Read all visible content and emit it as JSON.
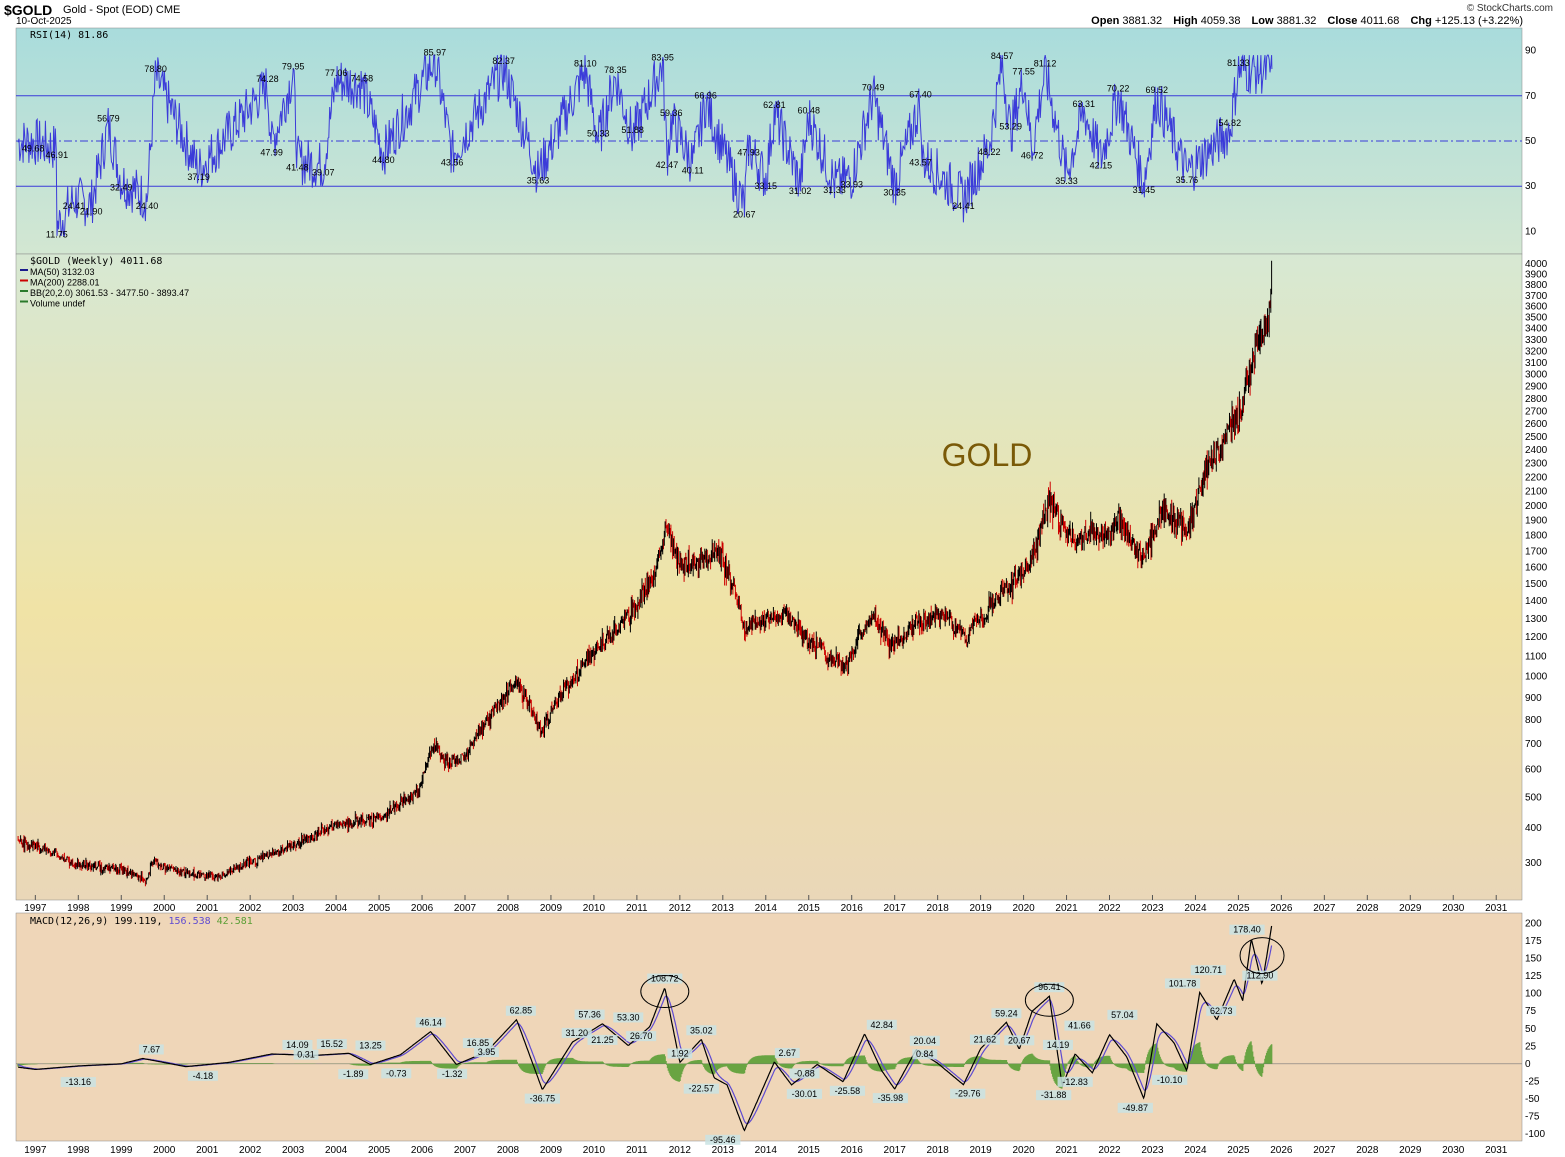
{
  "header": {
    "symbol": "$GOLD",
    "description": "Gold - Spot (EOD)",
    "exchange": "CME",
    "date": "10-Oct-2025",
    "brand": "© StockCharts.com",
    "open_label": "Open",
    "open": "3881.32",
    "high_label": "High",
    "high": "4059.38",
    "low_label": "Low",
    "low": "3881.32",
    "close_label": "Close",
    "close": "4011.68",
    "chg_label": "Chg",
    "chg": "+125.13 (+3.22%)"
  },
  "colors": {
    "rsi_line": "#3b3bd9",
    "rsi_bg_top": "#a9dcdc",
    "rsi_bg_bottom": "#d3e7d2",
    "price_bg_top": "#d7e8d3",
    "price_bg_mid": "#f0e3a6",
    "price_bg_bottom": "#ead7b8",
    "macd_bg": "#efd6b8",
    "up_bar": "#000000",
    "down_bar": "#cc0000",
    "macd_line": "#000000",
    "signal_line": "#5f4bd1",
    "histogram": "#5a9e35",
    "watermark": "#7a5a08"
  },
  "chart_data": [
    {
      "type": "line",
      "panel": "RSI",
      "legend": "RSI(14) 81.86",
      "ylim": [
        0,
        100
      ],
      "y_ticks": [
        10,
        30,
        50,
        70,
        90
      ],
      "reference_lines": [
        30,
        50,
        70
      ],
      "labels": [
        {
          "x": 1996.95,
          "y": 49.68
        },
        {
          "x": 1997.5,
          "y": 46.91
        },
        {
          "x": 1997.5,
          "y": 11.75
        },
        {
          "x": 1997.9,
          "y": 24.41
        },
        {
          "x": 1998.3,
          "y": 21.9
        },
        {
          "x": 1998.7,
          "y": 56.79
        },
        {
          "x": 1999.0,
          "y": 32.49
        },
        {
          "x": 1999.6,
          "y": 24.4
        },
        {
          "x": 1999.8,
          "y": 78.8
        },
        {
          "x": 2000.8,
          "y": 37.19
        },
        {
          "x": 2002.5,
          "y": 47.99
        },
        {
          "x": 2002.4,
          "y": 74.28
        },
        {
          "x": 2003.0,
          "y": 79.95
        },
        {
          "x": 2003.1,
          "y": 41.48
        },
        {
          "x": 2003.7,
          "y": 39.07
        },
        {
          "x": 2004.0,
          "y": 77.06
        },
        {
          "x": 2004.6,
          "y": 74.58
        },
        {
          "x": 2005.1,
          "y": 44.8
        },
        {
          "x": 2006.3,
          "y": 85.97
        },
        {
          "x": 2006.7,
          "y": 43.56
        },
        {
          "x": 2007.9,
          "y": 82.37
        },
        {
          "x": 2008.7,
          "y": 35.63
        },
        {
          "x": 2009.8,
          "y": 81.1
        },
        {
          "x": 2010.1,
          "y": 50.33
        },
        {
          "x": 2010.5,
          "y": 78.35
        },
        {
          "x": 2010.9,
          "y": 51.88
        },
        {
          "x": 2011.6,
          "y": 83.95
        },
        {
          "x": 2011.8,
          "y": 59.36
        },
        {
          "x": 2011.7,
          "y": 42.47
        },
        {
          "x": 2012.3,
          "y": 40.11
        },
        {
          "x": 2012.6,
          "y": 66.96
        },
        {
          "x": 2013.6,
          "y": 47.93
        },
        {
          "x": 2013.5,
          "y": 20.67
        },
        {
          "x": 2014.0,
          "y": 33.15
        },
        {
          "x": 2014.2,
          "y": 62.81
        },
        {
          "x": 2014.8,
          "y": 31.02
        },
        {
          "x": 2015.0,
          "y": 60.48
        },
        {
          "x": 2015.6,
          "y": 31.33
        },
        {
          "x": 2016.0,
          "y": 33.93
        },
        {
          "x": 2016.5,
          "y": 70.49
        },
        {
          "x": 2017.0,
          "y": 30.35
        },
        {
          "x": 2017.6,
          "y": 67.4
        },
        {
          "x": 2017.6,
          "y": 43.57
        },
        {
          "x": 2018.6,
          "y": 24.41
        },
        {
          "x": 2019.2,
          "y": 48.22
        },
        {
          "x": 2019.5,
          "y": 84.57
        },
        {
          "x": 2019.7,
          "y": 53.29
        },
        {
          "x": 2020.0,
          "y": 77.55
        },
        {
          "x": 2020.5,
          "y": 81.12
        },
        {
          "x": 2020.2,
          "y": 46.72
        },
        {
          "x": 2021.0,
          "y": 35.33
        },
        {
          "x": 2021.4,
          "y": 63.31
        },
        {
          "x": 2021.8,
          "y": 42.15
        },
        {
          "x": 2022.2,
          "y": 70.22
        },
        {
          "x": 2022.8,
          "y": 31.45
        },
        {
          "x": 2023.1,
          "y": 69.52
        },
        {
          "x": 2023.8,
          "y": 35.76
        },
        {
          "x": 2024.8,
          "y": 54.82
        },
        {
          "x": 2025.0,
          "y": 81.33
        }
      ]
    },
    {
      "type": "line",
      "panel": "Price",
      "title": "$GOLD (Weekly) 4011.68",
      "legend": [
        {
          "name": "MA(50)",
          "value": "3132.03",
          "color": "#1a1a8c"
        },
        {
          "name": "MA(200)",
          "value": "2288.01",
          "color": "#cc0000"
        },
        {
          "name": "BB(20,2.0)",
          "value": "3061.53 - 3477.50 - 3893.47",
          "color": "#2a7a2a"
        },
        {
          "name": "Volume undef",
          "value": "",
          "color": "#2a7a2a"
        }
      ],
      "watermark": "GOLD",
      "ylim": [
        210,
        4100
      ],
      "y_ticks": [
        300,
        400,
        500,
        600,
        700,
        800,
        900,
        1000,
        1100,
        1200,
        1300,
        1400,
        1500,
        1600,
        1700,
        1800,
        1900,
        2000,
        2100,
        2200,
        2300,
        2400,
        2500,
        2600,
        2700,
        2800,
        2900,
        3000,
        3100,
        3200,
        3300,
        3400,
        3500,
        3600,
        3700,
        3800,
        3900,
        4000
      ],
      "x_ticks": [
        "1997",
        "1998",
        "1999",
        "2000",
        "2001",
        "2002",
        "2003",
        "2004",
        "2005",
        "2006",
        "2007",
        "2008",
        "2009",
        "2010",
        "2011",
        "2012",
        "2013",
        "2014",
        "2015",
        "2016",
        "2017",
        "2018",
        "2019",
        "2020",
        "2021",
        "2022",
        "2023",
        "2024",
        "2025",
        "2026",
        "2027",
        "2028",
        "2029",
        "2030",
        "2031"
      ],
      "series": [
        {
          "x": [
            1996.0,
            1997.0,
            1998.0,
            1999.0,
            1999.6,
            1999.75,
            1999.9,
            2000.5,
            2001.2,
            2002.0,
            2003.0,
            2004.0,
            2005.0,
            2005.9,
            2006.3,
            2006.5,
            2007.0,
            2007.7,
            2008.2,
            2008.8,
            2009.2,
            2009.9,
            2010.5,
            2011.0,
            2011.4,
            2011.7,
            2011.9,
            2012.5,
            2012.9,
            2013.3,
            2013.5,
            2014.0,
            2014.5,
            2015.0,
            2015.5,
            2015.9,
            2016.5,
            2016.9,
            2017.7,
            2018.2,
            2018.65,
            2019.0,
            2019.5,
            2019.9,
            2020.2,
            2020.6,
            2020.9,
            2021.2,
            2021.6,
            2022.0,
            2022.2,
            2022.5,
            2022.8,
            2023.2,
            2023.5,
            2023.8,
            2024.0,
            2024.3,
            2024.6,
            2024.9,
            2025.0,
            2025.3,
            2025.5,
            2025.7,
            2025.78
          ],
          "y": [
            370,
            350,
            295,
            285,
            255,
            310,
            290,
            275,
            265,
            300,
            350,
            410,
            430,
            520,
            700,
            630,
            650,
            850,
            980,
            750,
            920,
            1100,
            1230,
            1380,
            1550,
            1880,
            1650,
            1620,
            1710,
            1450,
            1250,
            1300,
            1320,
            1180,
            1100,
            1060,
            1340,
            1150,
            1300,
            1320,
            1190,
            1300,
            1450,
            1550,
            1650,
            2050,
            1850,
            1760,
            1820,
            1790,
            1940,
            1750,
            1650,
            1950,
            1930,
            1830,
            2030,
            2300,
            2450,
            2650,
            2630,
            3100,
            3350,
            3450,
            4011
          ]
        }
      ]
    },
    {
      "type": "line",
      "panel": "MACD",
      "legend": {
        "name": "MACD(12,26,9)",
        "macd": "199.119",
        "signal": "156.538",
        "histogram": "42.581"
      },
      "ylim": [
        -110,
        215
      ],
      "y_ticks": [
        -100,
        -75,
        -50,
        -25,
        0,
        25,
        50,
        75,
        100,
        125,
        150,
        175,
        200
      ],
      "x_ticks": [
        "1997",
        "1998",
        "1999",
        "2000",
        "2001",
        "2002",
        "2003",
        "2004",
        "2005",
        "2006",
        "2007",
        "2008",
        "2009",
        "2010",
        "2011",
        "2012",
        "2013",
        "2014",
        "2015",
        "2016",
        "2017",
        "2018",
        "2019",
        "2020",
        "2021",
        "2022",
        "2023",
        "2024",
        "2025",
        "2026",
        "2027",
        "2028",
        "2029",
        "2030",
        "2031"
      ],
      "macd": {
        "x": [
          1996.0,
          1997.0,
          1998.0,
          1999.0,
          1999.5,
          2000.5,
          2001.5,
          2002.5,
          2003.5,
          2004.3,
          2004.8,
          2005.5,
          2006.2,
          2006.8,
          2007.5,
          2008.2,
          2008.8,
          2009.5,
          2010.2,
          2010.8,
          2011.3,
          2011.65,
          2012.0,
          2012.5,
          2012.8,
          2013.1,
          2013.5,
          2014.2,
          2014.6,
          2015.2,
          2015.8,
          2016.3,
          2016.7,
          2017.0,
          2017.5,
          2018.0,
          2018.6,
          2019.0,
          2019.6,
          2019.9,
          2020.2,
          2020.6,
          2020.9,
          2021.2,
          2021.6,
          2022.0,
          2022.4,
          2022.8,
          2023.1,
          2023.5,
          2023.8,
          2024.1,
          2024.5,
          2024.9,
          2025.1,
          2025.3,
          2025.55,
          2025.65,
          2025.78
        ],
        "y": [
          0,
          -8,
          -3,
          0,
          7.67,
          -4,
          2,
          14,
          12,
          15,
          -1,
          13,
          46,
          -1,
          17,
          63,
          -37,
          31,
          57,
          26,
          53,
          108.72,
          2,
          35,
          -20,
          -30,
          -95.46,
          2.67,
          -30,
          -0.88,
          -25.58,
          42.84,
          -10,
          -35.98,
          20.04,
          0.84,
          -29.76,
          21.62,
          59.24,
          20.67,
          75,
          96.41,
          -31.88,
          14.19,
          -12.83,
          41.66,
          10,
          -49.87,
          57.04,
          30,
          -10.1,
          101.78,
          62.73,
          120.71,
          90,
          178.4,
          112.9,
          150,
          199.119
        ]
      },
      "labels": [
        {
          "x": 1999.7,
          "y": 7.67
        },
        {
          "x": 1998.0,
          "y": -13.16
        },
        {
          "x": 2000.9,
          "y": -4.18
        },
        {
          "x": 2003.1,
          "y": 14.09
        },
        {
          "x": 2003.3,
          "y": 0.31
        },
        {
          "x": 2003.9,
          "y": 15.52
        },
        {
          "x": 2004.4,
          "y": -1.89
        },
        {
          "x": 2004.8,
          "y": 13.25
        },
        {
          "x": 2005.4,
          "y": -0.73
        },
        {
          "x": 2006.2,
          "y": 46.14
        },
        {
          "x": 2006.7,
          "y": -1.32
        },
        {
          "x": 2007.3,
          "y": 16.85
        },
        {
          "x": 2007.5,
          "y": 3.95
        },
        {
          "x": 2008.3,
          "y": 62.85
        },
        {
          "x": 2008.8,
          "y": -36.75
        },
        {
          "x": 2009.6,
          "y": 31.2
        },
        {
          "x": 2009.9,
          "y": 57.36
        },
        {
          "x": 2010.2,
          "y": 21.25
        },
        {
          "x": 2010.8,
          "y": 53.3
        },
        {
          "x": 2011.1,
          "y": 26.7
        },
        {
          "x": 2011.65,
          "y": 108.72
        },
        {
          "x": 2012.0,
          "y": 1.92
        },
        {
          "x": 2012.5,
          "y": 35.02
        },
        {
          "x": 2012.5,
          "y": -22.57
        },
        {
          "x": 2013.0,
          "y": -95.46
        },
        {
          "x": 2014.5,
          "y": 2.67
        },
        {
          "x": 2014.9,
          "y": -0.88
        },
        {
          "x": 2014.9,
          "y": -30.01
        },
        {
          "x": 2015.9,
          "y": -25.58
        },
        {
          "x": 2016.7,
          "y": 42.84
        },
        {
          "x": 2016.9,
          "y": -35.98
        },
        {
          "x": 2017.7,
          "y": 20.04
        },
        {
          "x": 2017.7,
          "y": 0.84
        },
        {
          "x": 2018.7,
          "y": -29.76
        },
        {
          "x": 2019.1,
          "y": 21.62
        },
        {
          "x": 2019.6,
          "y": 59.24
        },
        {
          "x": 2019.9,
          "y": 20.67
        },
        {
          "x": 2020.6,
          "y": 96.41
        },
        {
          "x": 2020.8,
          "y": 14.19
        },
        {
          "x": 2020.7,
          "y": -31.88
        },
        {
          "x": 2021.2,
          "y": -12.83
        },
        {
          "x": 2021.3,
          "y": 41.66
        },
        {
          "x": 2022.3,
          "y": 57.04
        },
        {
          "x": 2022.6,
          "y": -49.87
        },
        {
          "x": 2023.4,
          "y": -10.1
        },
        {
          "x": 2023.7,
          "y": 101.78
        },
        {
          "x": 2024.3,
          "y": 120.71
        },
        {
          "x": 2024.6,
          "y": 62.73
        },
        {
          "x": 2025.2,
          "y": 178.4
        },
        {
          "x": 2025.5,
          "y": 112.9
        }
      ]
    }
  ]
}
